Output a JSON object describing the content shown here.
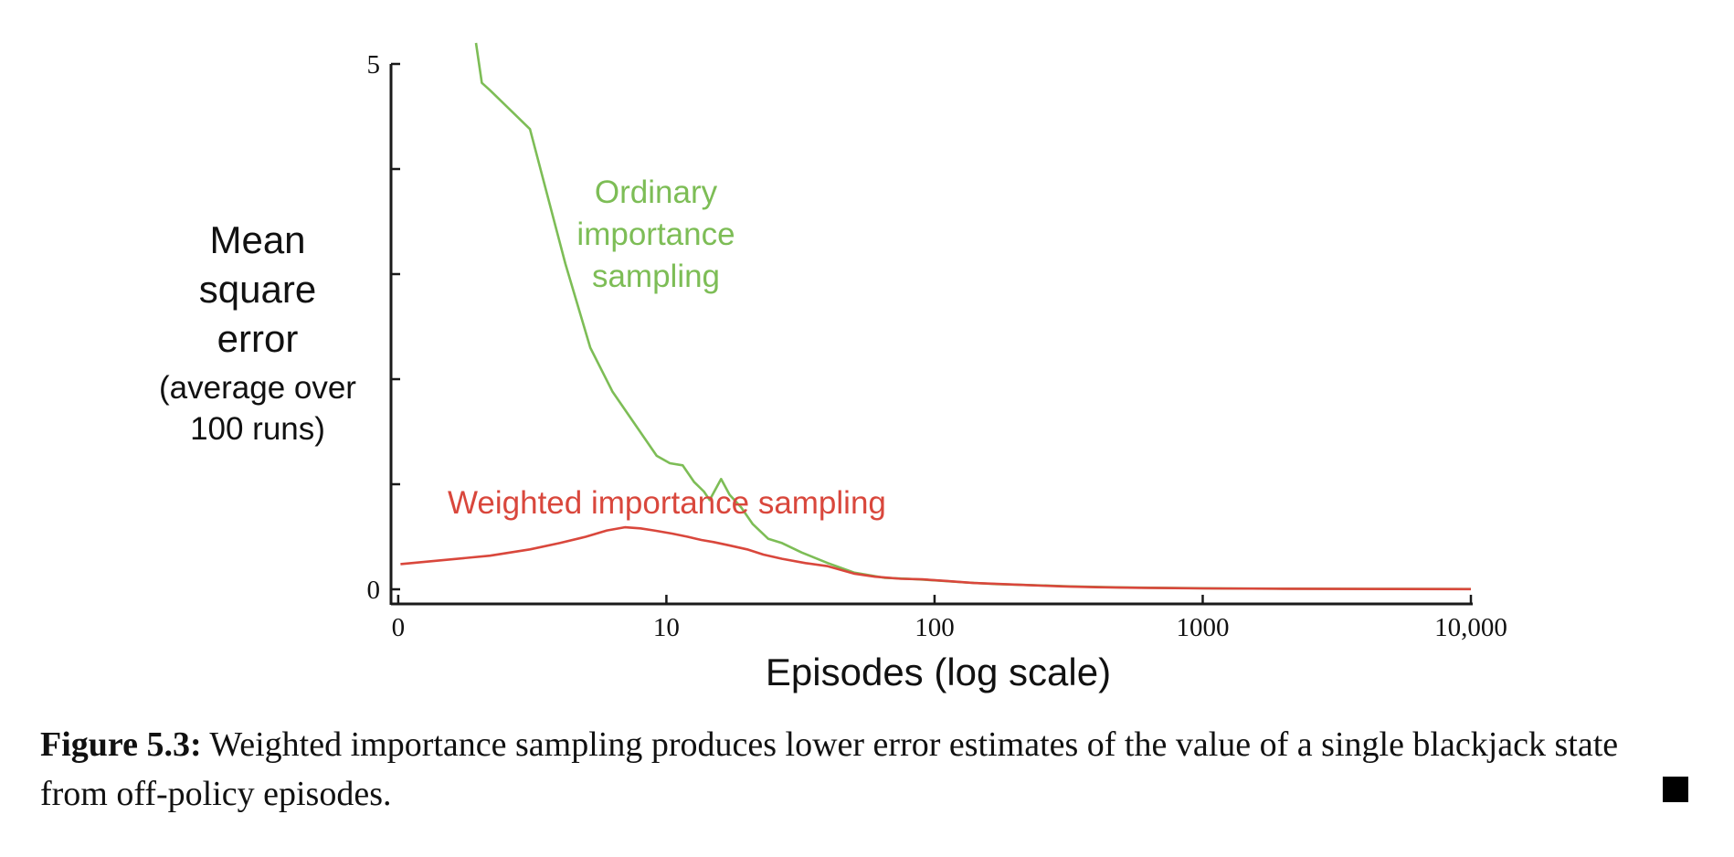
{
  "chart_data": {
    "type": "line",
    "x_scale": "log",
    "xlabel": "Episodes (log scale)",
    "ylabel_lines": [
      "Mean",
      "square",
      "error",
      "(average over",
      "100 runs)"
    ],
    "x_ticks": [
      {
        "value": 1,
        "label": "0"
      },
      {
        "value": 10,
        "label": "10"
      },
      {
        "value": 100,
        "label": "100"
      },
      {
        "value": 1000,
        "label": "1000"
      },
      {
        "value": 10000,
        "label": "10,000"
      }
    ],
    "y_ticks": [
      {
        "value": 0,
        "label": "0"
      },
      {
        "value": 1,
        "label": ""
      },
      {
        "value": 2,
        "label": ""
      },
      {
        "value": 3,
        "label": ""
      },
      {
        "value": 4,
        "label": ""
      },
      {
        "value": 5,
        "label": "5"
      }
    ],
    "xlim": [
      0.94,
      10000
    ],
    "ylim": [
      0,
      5
    ],
    "series": [
      {
        "name": "Ordinary importance sampling",
        "color": "#7dbd56",
        "points": [
          [
            1.95,
            5.2
          ],
          [
            2.05,
            4.82
          ],
          [
            2.2,
            4.75
          ],
          [
            3.1,
            4.38
          ],
          [
            4.2,
            3.1
          ],
          [
            5.2,
            2.3
          ],
          [
            6.3,
            1.88
          ],
          [
            7.5,
            1.6
          ],
          [
            9.2,
            1.27
          ],
          [
            10.3,
            1.2
          ],
          [
            11.5,
            1.18
          ],
          [
            12.7,
            1.02
          ],
          [
            13.8,
            0.93
          ],
          [
            14.5,
            0.85
          ],
          [
            16.0,
            1.05
          ],
          [
            17.2,
            0.9
          ],
          [
            19.0,
            0.78
          ],
          [
            21.0,
            0.62
          ],
          [
            24.0,
            0.48
          ],
          [
            27.0,
            0.44
          ],
          [
            32.0,
            0.35
          ],
          [
            40.0,
            0.25
          ],
          [
            50.0,
            0.16
          ],
          [
            65.0,
            0.11
          ],
          [
            80.0,
            0.1
          ],
          [
            100.0,
            0.085
          ],
          [
            130.0,
            0.065
          ],
          [
            170.0,
            0.05
          ],
          [
            230.0,
            0.04
          ],
          [
            320.0,
            0.028
          ],
          [
            500.0,
            0.018
          ],
          [
            800.0,
            0.012
          ],
          [
            1200.0,
            0.008
          ],
          [
            2000.0,
            0.006
          ],
          [
            4000.0,
            0.004
          ],
          [
            10000.0,
            0.003
          ]
        ]
      },
      {
        "name": "Weighted importance sampling",
        "color": "#d9473c",
        "points": [
          [
            1.02,
            0.24
          ],
          [
            1.5,
            0.28
          ],
          [
            2.2,
            0.32
          ],
          [
            3.1,
            0.38
          ],
          [
            4.0,
            0.44
          ],
          [
            5.0,
            0.5
          ],
          [
            6.0,
            0.56
          ],
          [
            7.0,
            0.59
          ],
          [
            8.0,
            0.58
          ],
          [
            9.0,
            0.56
          ],
          [
            10.5,
            0.53
          ],
          [
            12.0,
            0.5
          ],
          [
            13.5,
            0.47
          ],
          [
            15.0,
            0.45
          ],
          [
            17.0,
            0.42
          ],
          [
            20.0,
            0.38
          ],
          [
            23.0,
            0.33
          ],
          [
            27.0,
            0.29
          ],
          [
            33.0,
            0.25
          ],
          [
            40.0,
            0.22
          ],
          [
            50.0,
            0.15
          ],
          [
            60.0,
            0.12
          ],
          [
            75.0,
            0.1
          ],
          [
            90.0,
            0.095
          ],
          [
            110.0,
            0.08
          ],
          [
            140.0,
            0.06
          ],
          [
            180.0,
            0.05
          ],
          [
            230.0,
            0.038
          ],
          [
            300.0,
            0.028
          ],
          [
            400.0,
            0.02
          ],
          [
            600.0,
            0.014
          ],
          [
            1000.0,
            0.009
          ],
          [
            2000.0,
            0.005
          ],
          [
            5000.0,
            0.003
          ],
          [
            10000.0,
            0.002
          ]
        ]
      }
    ]
  },
  "caption": {
    "label": "Figure 5.3:",
    "text": " Weighted importance sampling produces lower error estimates of the value of a single blackjack state from off-policy episodes."
  }
}
